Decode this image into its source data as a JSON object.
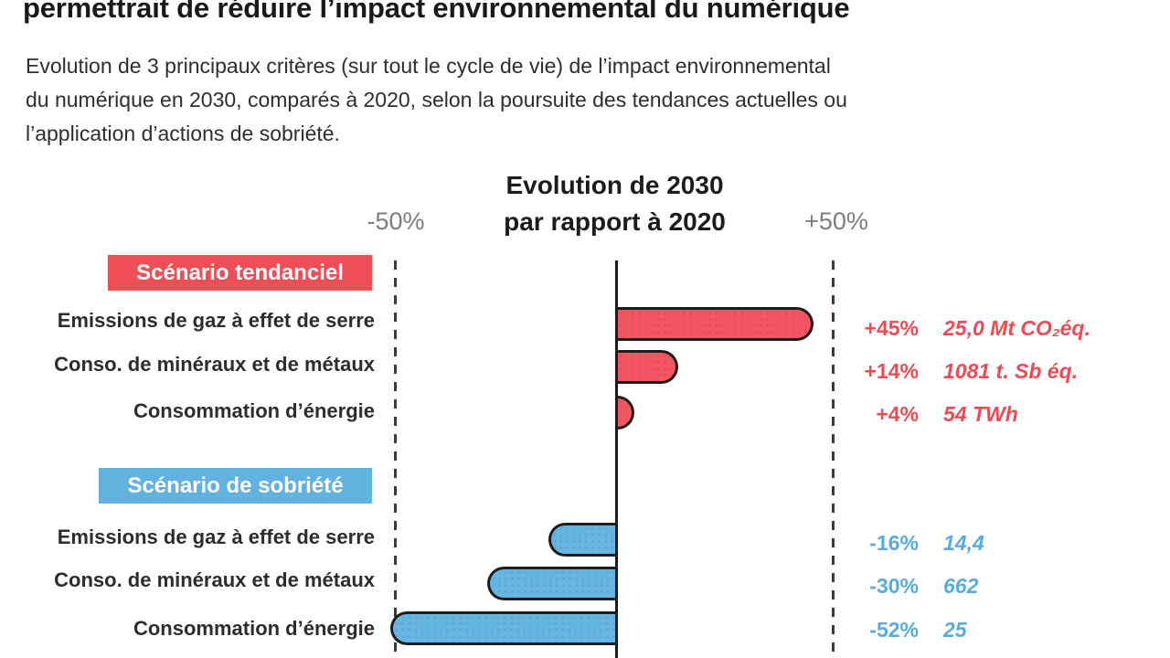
{
  "title": "permettrait de réduire l’impact environnemental du numérique",
  "subtitle_lines": [
    "Evolution de 3 principaux critères (sur tout le cycle de vie) de l’impact environnemental",
    "du numérique en 2030, comparés à 2020, selon la poursuite des tendances actuelles ou",
    "l’application d’actions de sobriété."
  ],
  "axis": {
    "header_line1": "Evolution de 2030",
    "header_line2": "par rapport à 2020",
    "min_label": "-50%",
    "max_label": "+50%"
  },
  "colors": {
    "trend_red": "#ee4e57",
    "sobriety_blue": "#62b2e0",
    "axis_black": "#1c1c1c",
    "gray_label": "#7d7d7d"
  },
  "chart_data": {
    "type": "bar",
    "orientation": "horizontal",
    "unit": "percent change 2030 vs 2020",
    "xlim": [
      -50,
      50
    ],
    "axis_ticks": [
      "-50%",
      "+50%"
    ],
    "title": "Evolution de 2030 par rapport à 2020",
    "groups": [
      {
        "name": "Scénario tendanciel",
        "color": "#ee4e57",
        "rows": [
          {
            "label": "Emissions de gaz à effet de serre",
            "value": 45,
            "pct_label": "+45%",
            "detail": "25,0 Mt CO₂éq."
          },
          {
            "label": "Conso. de minéraux et de métaux",
            "value": 14,
            "pct_label": "+14%",
            "detail": "1081 t. Sb éq."
          },
          {
            "label": "Consommation d’énergie",
            "value": 4,
            "pct_label": "+4%",
            "detail": "54 TWh"
          }
        ]
      },
      {
        "name": "Scénario de sobriété",
        "color": "#62b2e0",
        "rows": [
          {
            "label": "Emissions de gaz à effet de serre",
            "value": -16,
            "pct_label": "-16%",
            "detail": "14,4"
          },
          {
            "label": "Conso. de minéraux et de métaux",
            "value": -30,
            "pct_label": "-30%",
            "detail": "662"
          },
          {
            "label": "Consommation d’énergie",
            "value": -52,
            "pct_label": "-52%",
            "detail": "25"
          }
        ]
      }
    ]
  }
}
